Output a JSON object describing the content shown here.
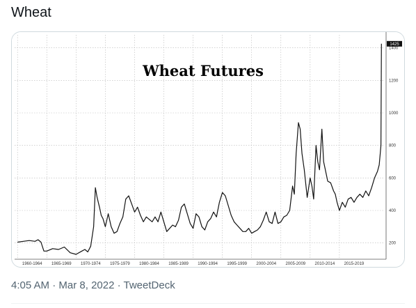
{
  "tweet": {
    "text": "Wheat",
    "time": "4:05 AM",
    "separator": "·",
    "date": "Mar 8, 2022",
    "source": "TweetDeck"
  },
  "chart_data": {
    "type": "line",
    "title": "Wheat Futures",
    "xlabel": "",
    "ylabel": "",
    "x_categories": [
      "1960-1964",
      "1965-1969",
      "1970-1974",
      "1975-1979",
      "1980-1984",
      "1985-1989",
      "1990-1994",
      "1995-1999",
      "2000-2004",
      "2005-2009",
      "2010-2014",
      "2015-2019"
    ],
    "y_ticks": [
      200,
      400,
      600,
      800,
      1000,
      1200,
      1400
    ],
    "ylim": [
      100,
      1480
    ],
    "last_value_label": "1425",
    "grid": true,
    "series": [
      {
        "x": [
          1960,
          1961,
          1962,
          1963,
          1963.5,
          1964,
          1964.5,
          1965,
          1966,
          1967,
          1968,
          1969,
          1970,
          1971,
          1971.5,
          1972,
          1972.5,
          1973,
          1973.3,
          1973.6,
          1974,
          1974.3,
          1974.6,
          1975,
          1975.5,
          1976,
          1976.5,
          1977,
          1977.5,
          1978,
          1978.5,
          1979,
          1979.5,
          1980,
          1980.5,
          1981,
          1981.5,
          1982,
          1983,
          1983.5,
          1984,
          1984.5,
          1985,
          1985.5,
          1986,
          1986.5,
          1987,
          1987.5,
          1988,
          1988.5,
          1989,
          1989.5,
          1990,
          1990.5,
          1991,
          1991.5,
          1992,
          1992.5,
          1993,
          1993.5,
          1994,
          1994.5,
          1995,
          1995.5,
          1996,
          1996.5,
          1997,
          1997.5,
          1998,
          1998.5,
          1999,
          1999.5,
          2000,
          2000.5,
          2001,
          2001.5,
          2002,
          2002.5,
          2003,
          2003.5,
          2004,
          2004.5,
          2005,
          2005.5,
          2006,
          2006.5,
          2007,
          2007.3,
          2007.6,
          2008,
          2008.3,
          2008.6,
          2009,
          2009.5,
          2010,
          2010.3,
          2010.6,
          2011,
          2011.3,
          2011.6,
          2012,
          2012.3,
          2012.6,
          2013,
          2013.5,
          2014,
          2014.3,
          2014.6,
          2015,
          2015.5,
          2016,
          2016.5,
          2017,
          2017.5,
          2018,
          2018.5,
          2019,
          2019.5,
          2020,
          2020.5,
          2021,
          2021.5,
          2021.8,
          2022,
          2022.1,
          2022.18
        ],
        "y": [
          205,
          210,
          215,
          210,
          220,
          205,
          150,
          150,
          165,
          160,
          175,
          140,
          130,
          150,
          160,
          145,
          180,
          300,
          540,
          480,
          420,
          370,
          350,
          300,
          380,
          300,
          260,
          270,
          320,
          360,
          470,
          490,
          440,
          390,
          420,
          370,
          330,
          360,
          330,
          360,
          330,
          390,
          330,
          270,
          290,
          310,
          300,
          340,
          420,
          440,
          380,
          320,
          290,
          380,
          360,
          300,
          280,
          330,
          350,
          390,
          360,
          450,
          510,
          490,
          430,
          370,
          330,
          310,
          290,
          270,
          270,
          290,
          260,
          270,
          280,
          300,
          340,
          390,
          330,
          320,
          390,
          320,
          330,
          360,
          370,
          400,
          550,
          500,
          750,
          940,
          900,
          750,
          650,
          480,
          600,
          550,
          470,
          800,
          700,
          650,
          900,
          700,
          650,
          580,
          570,
          520,
          500,
          450,
          400,
          450,
          420,
          470,
          480,
          450,
          480,
          500,
          480,
          520,
          490,
          540,
          600,
          640,
          680,
          760,
          800,
          1425
        ]
      }
    ]
  }
}
